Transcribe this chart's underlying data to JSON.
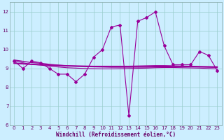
{
  "x": [
    0,
    1,
    2,
    3,
    4,
    5,
    6,
    7,
    8,
    9,
    10,
    11,
    12,
    13,
    14,
    15,
    16,
    17,
    18,
    19,
    20,
    21,
    22,
    23
  ],
  "y_main": [
    9.4,
    9.0,
    9.4,
    9.3,
    9.0,
    8.7,
    8.7,
    8.3,
    8.7,
    9.6,
    10.0,
    11.2,
    11.3,
    6.5,
    11.5,
    11.7,
    12.0,
    10.2,
    9.2,
    9.2,
    9.2,
    9.9,
    9.7,
    8.9
  ],
  "y_trend1": [
    9.45,
    9.38,
    9.31,
    9.28,
    9.22,
    9.18,
    9.14,
    9.12,
    9.1,
    9.09,
    9.08,
    9.07,
    9.07,
    9.07,
    9.07,
    9.07,
    9.08,
    9.09,
    9.1,
    9.1,
    9.09,
    9.08,
    9.07,
    9.06
  ],
  "y_trend2": [
    9.42,
    9.3,
    9.22,
    9.18,
    9.12,
    9.08,
    9.04,
    9.02,
    9.0,
    8.99,
    8.98,
    8.98,
    8.99,
    9.0,
    9.01,
    9.02,
    9.04,
    9.05,
    9.05,
    9.04,
    9.03,
    9.02,
    9.0,
    8.98
  ],
  "y_flat": [
    9.28,
    9.25,
    9.22,
    9.2,
    9.18,
    9.16,
    9.14,
    9.13,
    9.12,
    9.11,
    9.11,
    9.11,
    9.11,
    9.11,
    9.12,
    9.13,
    9.14,
    9.14,
    9.13,
    9.12,
    9.11,
    9.1,
    9.09,
    9.08
  ],
  "line_color": "#990099",
  "bg_color": "#cceeff",
  "grid_color": "#99cccc",
  "xlabel": "Windchill (Refroidissement éolien,°C)",
  "ylim": [
    6,
    12.5
  ],
  "xlim": [
    -0.5,
    23.5
  ],
  "yticks": [
    6,
    7,
    8,
    9,
    10,
    11,
    12
  ],
  "xticks": [
    0,
    1,
    2,
    3,
    4,
    5,
    6,
    7,
    8,
    9,
    10,
    11,
    12,
    13,
    14,
    15,
    16,
    17,
    18,
    19,
    20,
    21,
    22,
    23
  ],
  "xlabel_color": "#660066",
  "tick_color": "#660066"
}
